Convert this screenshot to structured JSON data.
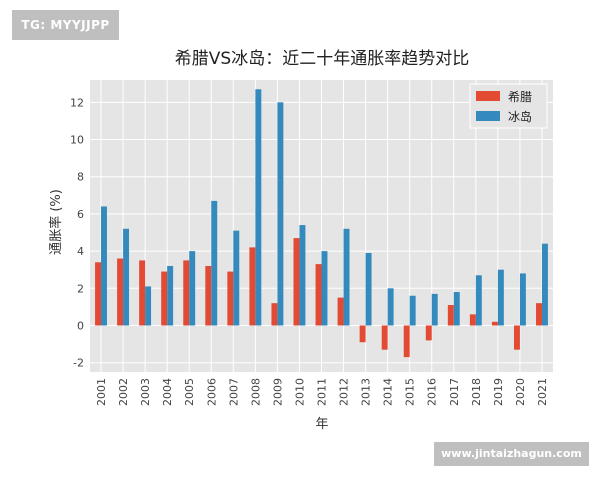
{
  "watermarks": {
    "top_left": "TG: MYYJJPP",
    "bottom_right": "www.jintaizhagun.com"
  },
  "chart_data": {
    "type": "bar",
    "title": "希腊VS冰岛：近二十年通胀率趋势对比",
    "xlabel": "年",
    "ylabel": "通胀率 (%)",
    "categories": [
      "2001",
      "2002",
      "2003",
      "2004",
      "2005",
      "2006",
      "2007",
      "2008",
      "2009",
      "2010",
      "2011",
      "2012",
      "2013",
      "2014",
      "2015",
      "2016",
      "2017",
      "2018",
      "2019",
      "2020",
      "2021"
    ],
    "series": [
      {
        "name": "希腊",
        "color": "#e24a33",
        "values": [
          3.4,
          3.6,
          3.5,
          2.9,
          3.5,
          3.2,
          2.9,
          4.2,
          1.2,
          4.7,
          3.3,
          1.5,
          -0.9,
          -1.3,
          -1.7,
          -0.8,
          1.1,
          0.6,
          0.2,
          -1.3,
          1.2
        ]
      },
      {
        "name": "冰岛",
        "color": "#348abd",
        "values": [
          6.4,
          5.2,
          2.1,
          3.2,
          4.0,
          6.7,
          5.1,
          12.7,
          12.0,
          5.4,
          4.0,
          5.2,
          3.9,
          2.0,
          1.6,
          1.7,
          1.8,
          2.7,
          3.0,
          2.8,
          4.4
        ]
      }
    ],
    "ylim": [
      -2.5,
      13.2
    ],
    "yticks": [
      -2,
      0,
      2,
      4,
      6,
      8,
      10,
      12
    ],
    "grid": true,
    "legend_position": "top-right",
    "background": "#e5e5e5"
  }
}
